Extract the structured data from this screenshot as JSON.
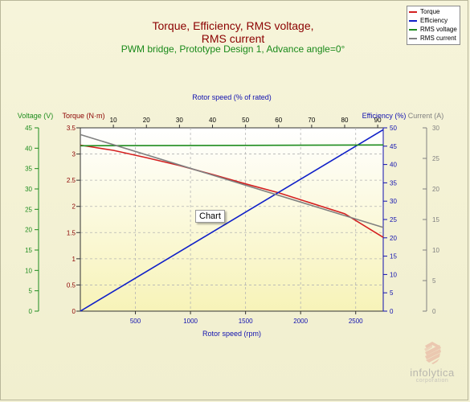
{
  "title_lines": [
    "Torque, Efficiency, RMS voltage,",
    "RMS current"
  ],
  "subtitle": "PWM bridge, Prototype Design 1, Advance angle=0°",
  "tooltip": "Chart",
  "brand": {
    "name": "infolytica",
    "sub": "corporation",
    "logo": "infolytica-logo-icon"
  },
  "colors": {
    "torque": "#d42020",
    "efficiency": "#1020c8",
    "voltage": "#1e8c1e",
    "current": "#808080",
    "title": "#8b0000",
    "subtitle": "#1a8a1a",
    "axis_blue": "#1010b0"
  },
  "chart_data": {
    "type": "line",
    "x": [
      0,
      2750
    ],
    "x_axis": {
      "title": "Rotor speed (rpm)",
      "range": [
        0,
        2750
      ],
      "ticks": [
        500,
        1000,
        1500,
        2000,
        2500
      ]
    },
    "x2_axis": {
      "title": "Rotor speed (% of rated)",
      "range": [
        0,
        91.67
      ],
      "ticks": [
        10,
        20,
        30,
        40,
        50,
        60,
        70,
        80,
        90
      ]
    },
    "y_axes": {
      "voltage": {
        "title": "Voltage (V)",
        "range": [
          0,
          45
        ],
        "ticks": [
          0,
          5,
          10,
          15,
          20,
          25,
          30,
          35,
          40,
          45
        ]
      },
      "torque": {
        "title": "Torque (N·m)",
        "range": [
          0,
          3.5
        ],
        "ticks": [
          0,
          0.5,
          1,
          1.5,
          2,
          2.5,
          3,
          3.5
        ]
      },
      "efficiency": {
        "title": "Efficiency (%)",
        "range": [
          0,
          50
        ],
        "ticks": [
          0,
          5,
          10,
          15,
          20,
          25,
          30,
          35,
          40,
          45,
          50
        ]
      },
      "current": {
        "title": "Current (A)",
        "range": [
          0,
          30
        ],
        "ticks": [
          0,
          5,
          10,
          15,
          20,
          25,
          30
        ]
      }
    },
    "series": [
      {
        "name": "Torque",
        "axis": "torque",
        "x": [
          0,
          300,
          600,
          900,
          1200,
          1500,
          1800,
          2100,
          2400,
          2750
        ],
        "values": [
          3.17,
          3.07,
          2.93,
          2.78,
          2.61,
          2.43,
          2.26,
          2.06,
          1.86,
          1.41
        ]
      },
      {
        "name": "Efficiency",
        "axis": "efficiency",
        "x": [
          0,
          2750
        ],
        "values": [
          0,
          49.5
        ]
      },
      {
        "name": "RMS voltage",
        "axis": "voltage",
        "x": [
          0,
          1500,
          2750
        ],
        "values": [
          40.6,
          40.7,
          40.8
        ]
      },
      {
        "name": "RMS current",
        "axis": "current",
        "x": [
          0,
          2750
        ],
        "values": [
          28.9,
          13.7
        ]
      }
    ],
    "grid": true,
    "legend": "top-right"
  }
}
